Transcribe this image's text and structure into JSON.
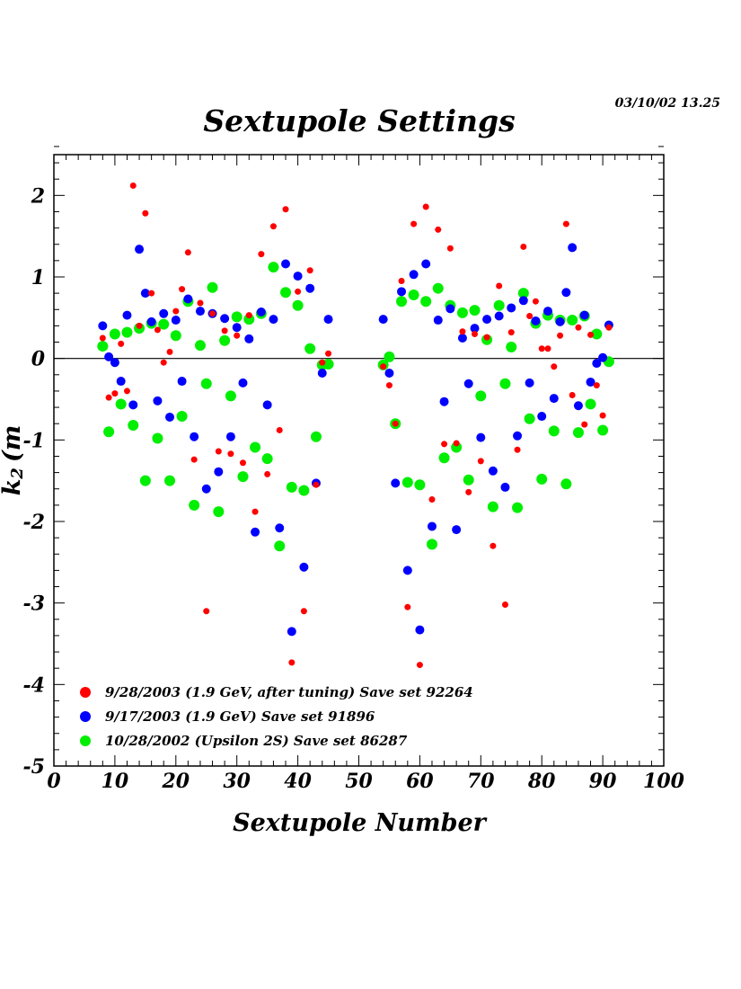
{
  "header": {
    "title": "Sextupole Settings",
    "timestamp": "03/10/02   13.25"
  },
  "chart_data": {
    "type": "scatter",
    "title": "Sextupole Settings",
    "xlabel": "Sextupole Number",
    "ylabel": "k",
    "ylabel_sub": "2",
    "ylabel_units": "(m",
    "xlim": [
      0,
      100
    ],
    "ylim": [
      -5,
      2.5
    ],
    "xticks": [
      0,
      10,
      20,
      30,
      40,
      50,
      60,
      70,
      80,
      90,
      100
    ],
    "yticks": [
      -5,
      -4,
      -3,
      -2,
      -1,
      0,
      1,
      2
    ],
    "zero_line": true,
    "legend_position": "bottom-left",
    "series": [
      {
        "name": "9/28/2003 (1.9 GeV, after tuning)  Save set 92264",
        "color": "#ff0000",
        "marker_size": "small",
        "points": [
          [
            8,
            0.25
          ],
          [
            9,
            -0.48
          ],
          [
            10,
            -0.43
          ],
          [
            11,
            0.18
          ],
          [
            12,
            -0.4
          ],
          [
            13,
            2.12
          ],
          [
            14,
            0.4
          ],
          [
            15,
            1.78
          ],
          [
            16,
            0.8
          ],
          [
            17,
            0.35
          ],
          [
            18,
            -0.05
          ],
          [
            19,
            0.08
          ],
          [
            20,
            0.58
          ],
          [
            21,
            0.85
          ],
          [
            22,
            1.3
          ],
          [
            23,
            -1.24
          ],
          [
            24,
            0.68
          ],
          [
            25,
            -3.1
          ],
          [
            26,
            0.55
          ],
          [
            27,
            -1.14
          ],
          [
            28,
            0.34
          ],
          [
            29,
            -1.17
          ],
          [
            30,
            0.28
          ],
          [
            31,
            -1.28
          ],
          [
            32,
            0.53
          ],
          [
            33,
            -1.88
          ],
          [
            34,
            1.28
          ],
          [
            35,
            -1.42
          ],
          [
            36,
            1.62
          ],
          [
            37,
            -0.88
          ],
          [
            38,
            1.83
          ],
          [
            39,
            -3.73
          ],
          [
            40,
            0.82
          ],
          [
            41,
            -3.1
          ],
          [
            42,
            1.08
          ],
          [
            43,
            -1.55
          ],
          [
            44,
            -0.05
          ],
          [
            45,
            0.06
          ],
          [
            54,
            -0.1
          ],
          [
            55,
            -0.33
          ],
          [
            56,
            -0.8
          ],
          [
            57,
            0.95
          ],
          [
            58,
            -3.05
          ],
          [
            59,
            1.65
          ],
          [
            60,
            -3.76
          ],
          [
            61,
            1.86
          ],
          [
            62,
            -1.73
          ],
          [
            63,
            1.58
          ],
          [
            64,
            -1.05
          ],
          [
            65,
            1.35
          ],
          [
            66,
            -1.04
          ],
          [
            67,
            0.33
          ],
          [
            68,
            -1.64
          ],
          [
            69,
            0.3
          ],
          [
            70,
            -1.26
          ],
          [
            71,
            0.26
          ],
          [
            72,
            -2.3
          ],
          [
            73,
            0.89
          ],
          [
            74,
            -3.02
          ],
          [
            75,
            0.32
          ],
          [
            76,
            -1.12
          ],
          [
            77,
            1.37
          ],
          [
            78,
            0.52
          ],
          [
            79,
            0.7
          ],
          [
            80,
            0.12
          ],
          [
            81,
            0.12
          ],
          [
            82,
            -0.1
          ],
          [
            83,
            0.28
          ],
          [
            84,
            1.65
          ],
          [
            85,
            -0.45
          ],
          [
            86,
            0.38
          ],
          [
            87,
            -0.81
          ],
          [
            88,
            0.29
          ],
          [
            89,
            -0.33
          ],
          [
            90,
            -0.7
          ],
          [
            91,
            0.38
          ]
        ]
      },
      {
        "name": "9/17/2003 (1.9 GeV)  Save set 91896",
        "color": "#0000ff",
        "marker_size": "medium",
        "points": [
          [
            8,
            0.4
          ],
          [
            9,
            0.02
          ],
          [
            10,
            -0.05
          ],
          [
            11,
            -0.28
          ],
          [
            12,
            0.53
          ],
          [
            13,
            -0.57
          ],
          [
            14,
            1.34
          ],
          [
            15,
            0.8
          ],
          [
            16,
            0.45
          ],
          [
            17,
            -0.52
          ],
          [
            18,
            0.55
          ],
          [
            19,
            -0.72
          ],
          [
            20,
            0.47
          ],
          [
            21,
            -0.28
          ],
          [
            22,
            0.73
          ],
          [
            23,
            -0.96
          ],
          [
            24,
            0.58
          ],
          [
            25,
            -1.6
          ],
          [
            26,
            0.55
          ],
          [
            27,
            -1.39
          ],
          [
            28,
            0.49
          ],
          [
            29,
            -0.96
          ],
          [
            30,
            0.38
          ],
          [
            31,
            -0.3
          ],
          [
            32,
            0.24
          ],
          [
            33,
            -2.13
          ],
          [
            34,
            0.57
          ],
          [
            35,
            -0.57
          ],
          [
            36,
            0.48
          ],
          [
            37,
            -2.08
          ],
          [
            38,
            1.16
          ],
          [
            39,
            -3.35
          ],
          [
            40,
            1.01
          ],
          [
            41,
            -2.56
          ],
          [
            42,
            0.86
          ],
          [
            43,
            -1.53
          ],
          [
            44,
            -0.18
          ],
          [
            45,
            0.48
          ],
          [
            54,
            0.48
          ],
          [
            55,
            -0.18
          ],
          [
            56,
            -1.53
          ],
          [
            57,
            0.82
          ],
          [
            58,
            -2.6
          ],
          [
            59,
            1.03
          ],
          [
            60,
            -3.33
          ],
          [
            61,
            1.16
          ],
          [
            62,
            -2.06
          ],
          [
            63,
            0.47
          ],
          [
            64,
            -0.53
          ],
          [
            65,
            0.61
          ],
          [
            66,
            -2.1
          ],
          [
            67,
            0.25
          ],
          [
            68,
            -0.31
          ],
          [
            69,
            0.37
          ],
          [
            70,
            -0.97
          ],
          [
            71,
            0.48
          ],
          [
            72,
            -1.38
          ],
          [
            73,
            0.52
          ],
          [
            74,
            -1.58
          ],
          [
            75,
            0.62
          ],
          [
            76,
            -0.95
          ],
          [
            77,
            0.71
          ],
          [
            78,
            -0.3
          ],
          [
            79,
            0.46
          ],
          [
            80,
            -0.71
          ],
          [
            81,
            0.58
          ],
          [
            82,
            -0.49
          ],
          [
            83,
            0.45
          ],
          [
            84,
            0.81
          ],
          [
            85,
            1.36
          ],
          [
            86,
            -0.58
          ],
          [
            87,
            0.53
          ],
          [
            88,
            -0.29
          ],
          [
            89,
            -0.06
          ],
          [
            90,
            0.01
          ],
          [
            91,
            0.41
          ]
        ]
      },
      {
        "name": "10/28/2002 (Upsilon 2S)  Save set 86287",
        "color": "#00ee00",
        "marker_size": "large",
        "points": [
          [
            8,
            0.15
          ],
          [
            9,
            -0.9
          ],
          [
            10,
            0.3
          ],
          [
            11,
            -0.56
          ],
          [
            12,
            0.32
          ],
          [
            13,
            -0.82
          ],
          [
            14,
            0.37
          ],
          [
            15,
            -1.5
          ],
          [
            16,
            0.43
          ],
          [
            17,
            -0.98
          ],
          [
            18,
            0.42
          ],
          [
            19,
            -1.5
          ],
          [
            20,
            0.28
          ],
          [
            21,
            -0.71
          ],
          [
            22,
            0.7
          ],
          [
            23,
            -1.8
          ],
          [
            24,
            0.16
          ],
          [
            25,
            -0.31
          ],
          [
            26,
            0.87
          ],
          [
            27,
            -1.88
          ],
          [
            28,
            0.22
          ],
          [
            29,
            -0.46
          ],
          [
            30,
            0.51
          ],
          [
            31,
            -1.45
          ],
          [
            32,
            0.48
          ],
          [
            33,
            -1.09
          ],
          [
            34,
            0.55
          ],
          [
            35,
            -1.23
          ],
          [
            36,
            1.12
          ],
          [
            37,
            -2.3
          ],
          [
            38,
            0.81
          ],
          [
            39,
            -1.58
          ],
          [
            40,
            0.65
          ],
          [
            41,
            -1.62
          ],
          [
            42,
            0.12
          ],
          [
            43,
            -0.96
          ],
          [
            44,
            -0.08
          ],
          [
            45,
            -0.07
          ],
          [
            54,
            -0.08
          ],
          [
            55,
            0.02
          ],
          [
            56,
            -0.8
          ],
          [
            57,
            0.7
          ],
          [
            58,
            -1.52
          ],
          [
            59,
            0.78
          ],
          [
            60,
            -1.55
          ],
          [
            61,
            0.7
          ],
          [
            62,
            -2.28
          ],
          [
            63,
            0.86
          ],
          [
            64,
            -1.22
          ],
          [
            65,
            0.65
          ],
          [
            66,
            -1.09
          ],
          [
            67,
            0.56
          ],
          [
            68,
            -1.49
          ],
          [
            69,
            0.59
          ],
          [
            70,
            -0.46
          ],
          [
            71,
            0.23
          ],
          [
            72,
            -1.82
          ],
          [
            73,
            0.65
          ],
          [
            74,
            -0.31
          ],
          [
            75,
            0.14
          ],
          [
            76,
            -1.83
          ],
          [
            77,
            0.8
          ],
          [
            78,
            -0.74
          ],
          [
            79,
            0.43
          ],
          [
            80,
            -1.48
          ],
          [
            81,
            0.53
          ],
          [
            82,
            -0.89
          ],
          [
            83,
            0.47
          ],
          [
            84,
            -1.54
          ],
          [
            85,
            0.47
          ],
          [
            86,
            -0.91
          ],
          [
            87,
            0.52
          ],
          [
            88,
            -0.56
          ],
          [
            89,
            0.3
          ],
          [
            90,
            -0.88
          ],
          [
            91,
            -0.04
          ]
        ]
      }
    ]
  }
}
